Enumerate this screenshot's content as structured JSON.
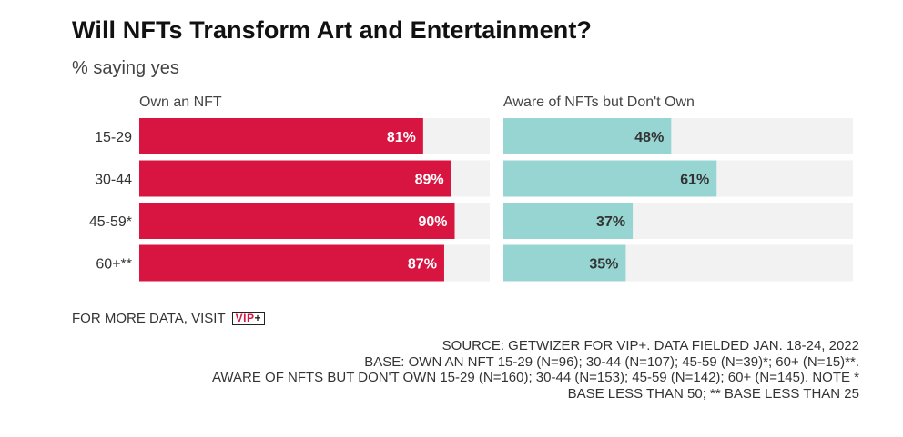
{
  "title": "Will NFTs Transform Art and Entertainment?",
  "subtitle": "% saying yes",
  "more_data": {
    "label": "FOR MORE DATA, VISIT",
    "logo_text": "VIP",
    "logo_plus": "+"
  },
  "source_lines": [
    "SOURCE: GETWIZER FOR VIP+. DATA FIELDED JAN. 18-24, 2022",
    "BASE: OWN AN NFT 15-29 (N=96); 30-44 (N=107); 45-59 (N=39)*; 60+ (N=15)**.",
    "AWARE OF NFTS BUT DON'T OWN 15-29 (N=160); 30-44 (N=153); 45-59 (N=142); 60+ (N=145). NOTE *",
    "BASE LESS THAN 50; ** BASE LESS THAN 25"
  ],
  "colors": {
    "own": "#d81440",
    "aware": "#97d5d3",
    "track": "#f2f2f2",
    "own_label": "#ffffff",
    "aware_label": "#333333"
  },
  "chart_data": {
    "type": "bar",
    "orientation": "horizontal",
    "categories": [
      "15-29",
      "30-44",
      "45-59*",
      "60+**"
    ],
    "series": [
      {
        "name": "Own an NFT",
        "values": [
          81,
          89,
          90,
          87
        ]
      },
      {
        "name": "Aware of NFTs but Don't Own",
        "values": [
          48,
          61,
          37,
          35
        ]
      }
    ],
    "value_suffix": "%",
    "xlim": [
      0,
      100
    ],
    "grid": false,
    "legend": "panel headers"
  }
}
